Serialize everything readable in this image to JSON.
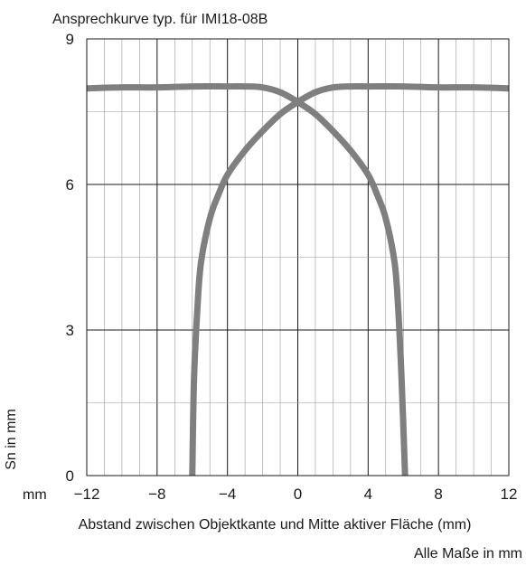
{
  "chart_data": {
    "type": "line",
    "title": "Ansprechkurve typ. für IMI18-08B",
    "xlabel": "Abstand zwischen Objektkante und Mitte aktiver Fläche (mm)",
    "ylabel": "Sn in mm",
    "x_unit": "mm",
    "xlim": [
      -12,
      12
    ],
    "ylim": [
      0,
      9
    ],
    "x_ticks": [
      -12,
      -8,
      -4,
      0,
      4,
      8,
      12
    ],
    "x_tick_labels": [
      "−12",
      "−8",
      "−4",
      "0",
      "4",
      "8",
      "12"
    ],
    "y_ticks": [
      0,
      3,
      6,
      9
    ],
    "grid": true,
    "series": [
      {
        "color": "#7f7f7f",
        "x": [
          -6,
          -5.9,
          -5.7,
          -5.5,
          -5,
          -4.5,
          -4,
          -3,
          -2,
          -1,
          0,
          1,
          2,
          3,
          4,
          6,
          8,
          10,
          12
        ],
        "y": [
          0,
          2.0,
          3.5,
          4.4,
          5.3,
          5.8,
          6.2,
          6.7,
          7.1,
          7.45,
          7.7,
          7.9,
          8.0,
          8.02,
          8.02,
          8.02,
          8.0,
          8.0,
          7.98
        ]
      },
      {
        "color": "#7f7f7f",
        "x": [
          -12,
          -10,
          -8,
          -6,
          -4,
          -3,
          -2,
          -1,
          0,
          1,
          2,
          3,
          4,
          4.5,
          5,
          5.5,
          5.7,
          5.9,
          6.1
        ],
        "y": [
          7.98,
          8.0,
          8.0,
          8.02,
          8.02,
          8.02,
          8.0,
          7.9,
          7.7,
          7.45,
          7.1,
          6.7,
          6.2,
          5.8,
          5.3,
          4.4,
          3.5,
          2.0,
          0
        ]
      }
    ]
  },
  "footer": {
    "note": "Alle Maße in mm"
  }
}
